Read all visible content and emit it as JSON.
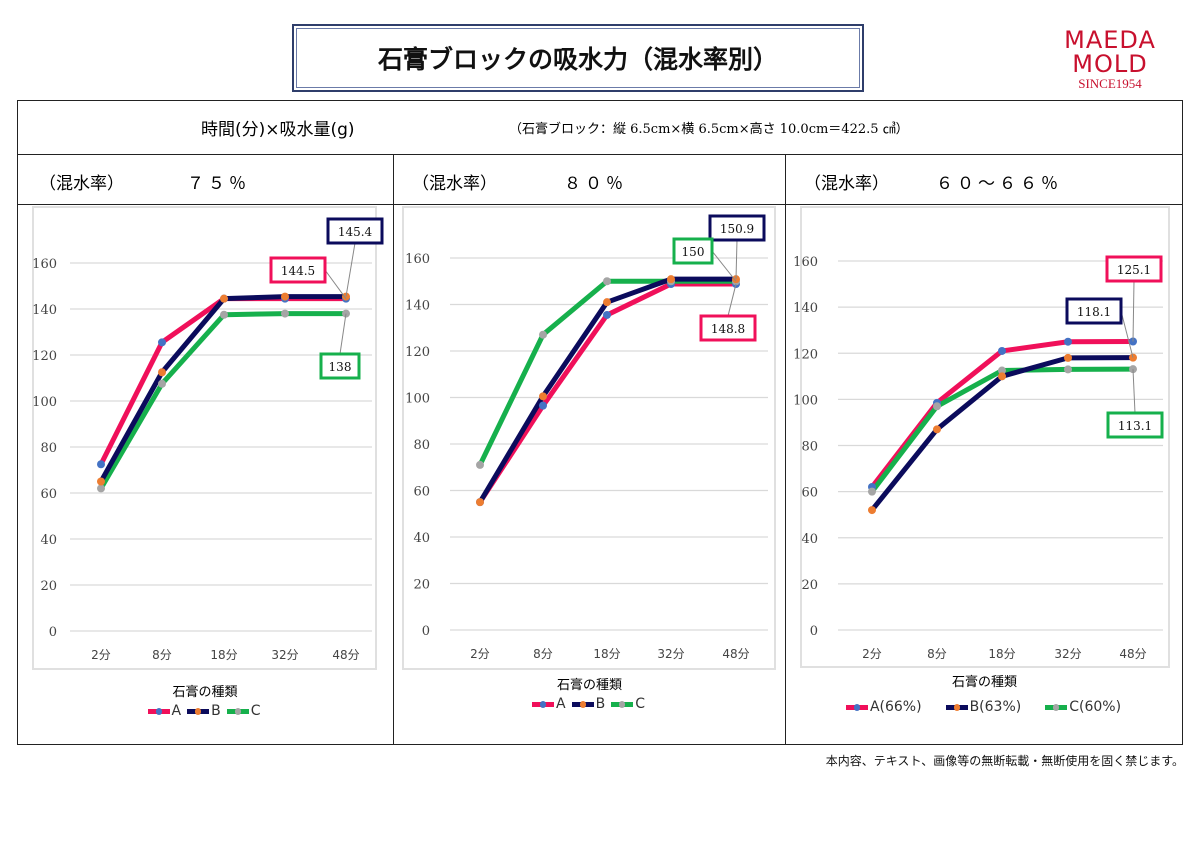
{
  "title": "石膏ブロックの吸水力（混水率別）",
  "logo": {
    "line1": "MAEDA",
    "line2": "MOLD",
    "line3": "SINCE1954"
  },
  "header": {
    "left": "時間(分)×吸水量(g)",
    "right": "（石膏ブロック：縦 6.5cm×横 6.5cm×高さ 10.0cm＝422.5 ㎤）"
  },
  "footer": "本内容、テキスト、画像等の無断転載・無断使用を固く禁じます。",
  "colors": {
    "A_line": "#f0105a",
    "A_marker": "#4472c4",
    "B_line": "#0b0b5c",
    "B_marker": "#ed7d31",
    "C_line": "#16b04c",
    "C_marker": "#a5a5a5"
  },
  "panels": [
    {
      "mix_label": "（混水率）",
      "mix_value": "７５％"
    },
    {
      "mix_label": "（混水率）",
      "mix_value": "８０％"
    },
    {
      "mix_label": "（混水率）",
      "mix_value": "６０～６６％"
    }
  ],
  "chart_data": [
    {
      "type": "line",
      "categories": [
        "2分",
        "8分",
        "18分",
        "32分",
        "48分"
      ],
      "ylim": [
        0,
        160
      ],
      "yticks": [
        0,
        20,
        40,
        60,
        80,
        100,
        120,
        140,
        160
      ],
      "grid": true,
      "legend_title": "石膏の種類",
      "legend_position": "bottom",
      "series": [
        {
          "name": "A",
          "values": [
            72.5,
            125.5,
            144.5,
            144.5,
            144.5
          ],
          "data_label": "144.5"
        },
        {
          "name": "B",
          "values": [
            65,
            112.5,
            144.5,
            145.4,
            145.4
          ],
          "data_label": "145.4"
        },
        {
          "name": "C",
          "values": [
            62,
            107.5,
            137.5,
            138,
            138
          ],
          "data_label": "138"
        }
      ]
    },
    {
      "type": "line",
      "categories": [
        "2分",
        "8分",
        "18分",
        "32分",
        "48分"
      ],
      "ylim": [
        0,
        160
      ],
      "yticks": [
        0,
        20,
        40,
        60,
        80,
        100,
        120,
        140,
        160
      ],
      "grid": true,
      "legend_title": "石膏の種類",
      "legend_position": "bottom",
      "series": [
        {
          "name": "A",
          "values": [
            55,
            96.5,
            135.5,
            148.8,
            148.8
          ],
          "data_label": "148.8"
        },
        {
          "name": "B",
          "values": [
            55,
            100.5,
            141,
            150.9,
            150.9
          ],
          "data_label": "150.9"
        },
        {
          "name": "C",
          "values": [
            71,
            127,
            150,
            150,
            150
          ],
          "data_label": "150"
        }
      ]
    },
    {
      "type": "line",
      "categories": [
        "2分",
        "8分",
        "18分",
        "32分",
        "48分"
      ],
      "ylim": [
        0,
        160
      ],
      "yticks": [
        0,
        20,
        40,
        60,
        80,
        100,
        120,
        140,
        160
      ],
      "grid": true,
      "legend_title": "石膏の種類",
      "legend_position": "bottom",
      "series": [
        {
          "name": "A(66%)",
          "values": [
            62,
            98.5,
            121,
            125,
            125.1
          ],
          "data_label": "125.1"
        },
        {
          "name": "B(63%)",
          "values": [
            52,
            87,
            110,
            118,
            118.1
          ],
          "data_label": "118.1"
        },
        {
          "name": "C(60%)",
          "values": [
            60,
            97,
            112.5,
            113,
            113.1
          ],
          "data_label": "113.1"
        }
      ]
    }
  ]
}
